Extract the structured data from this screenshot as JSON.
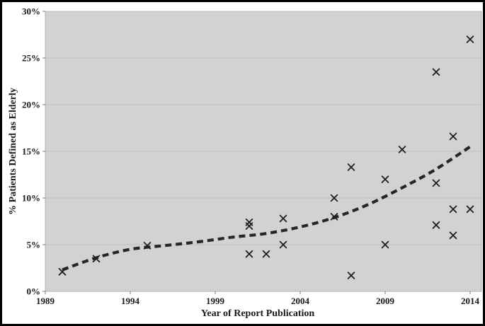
{
  "chart_data": {
    "type": "scatter",
    "title": "",
    "xlabel": "Year of Report Publication",
    "ylabel": "% Patients Defined as Elderly",
    "x_ticks": [
      "1989",
      "1994",
      "1999",
      "2004",
      "2009",
      "2014"
    ],
    "y_ticks": [
      "0%",
      "5%",
      "10%",
      "15%",
      "20%",
      "25%",
      "30%"
    ],
    "xlim": [
      1989,
      2014.7
    ],
    "ylim": [
      0,
      30
    ],
    "grid": "horizontal gridlines at every 5%",
    "legend": "none",
    "marker_symbol": "x",
    "points": [
      {
        "year": 1990,
        "value": 2.1
      },
      {
        "year": 1992,
        "value": 3.5
      },
      {
        "year": 1995,
        "value": 4.9
      },
      {
        "year": 2001,
        "value": 7.4
      },
      {
        "year": 2001,
        "value": 7.0
      },
      {
        "year": 2001,
        "value": 4.0
      },
      {
        "year": 2002,
        "value": 4.0
      },
      {
        "year": 2003,
        "value": 7.8
      },
      {
        "year": 2003,
        "value": 5.0
      },
      {
        "year": 2006,
        "value": 10.0
      },
      {
        "year": 2006,
        "value": 8.0
      },
      {
        "year": 2007,
        "value": 13.3
      },
      {
        "year": 2007,
        "value": 1.7
      },
      {
        "year": 2009,
        "value": 12.0
      },
      {
        "year": 2009,
        "value": 5.0
      },
      {
        "year": 2010,
        "value": 15.2
      },
      {
        "year": 2012,
        "value": 23.5
      },
      {
        "year": 2012,
        "value": 11.6
      },
      {
        "year": 2012,
        "value": 7.1
      },
      {
        "year": 2013,
        "value": 16.6
      },
      {
        "year": 2013,
        "value": 8.8
      },
      {
        "year": 2013,
        "value": 6.0
      },
      {
        "year": 2014,
        "value": 27.0
      },
      {
        "year": 2014,
        "value": 8.8
      }
    ],
    "trend_line": {
      "style": "dashed",
      "points": [
        [
          1990,
          2.3
        ],
        [
          1992,
          3.6
        ],
        [
          1994,
          4.5
        ],
        [
          1996,
          4.9
        ],
        [
          1998,
          5.3
        ],
        [
          2000,
          5.8
        ],
        [
          2002,
          6.2
        ],
        [
          2004,
          6.9
        ],
        [
          2006,
          7.9
        ],
        [
          2008,
          9.3
        ],
        [
          2010,
          11.1
        ],
        [
          2012,
          13.1
        ],
        [
          2014,
          15.5
        ]
      ]
    }
  },
  "colors": {
    "plot_background": "#d2d2d2",
    "plot_border": "#b0b0b0",
    "gridline": "#bfbfbf",
    "tick": "#7a7a7a",
    "marker": "#1f1f1f",
    "trend": "#262626",
    "frame": "#000000"
  }
}
